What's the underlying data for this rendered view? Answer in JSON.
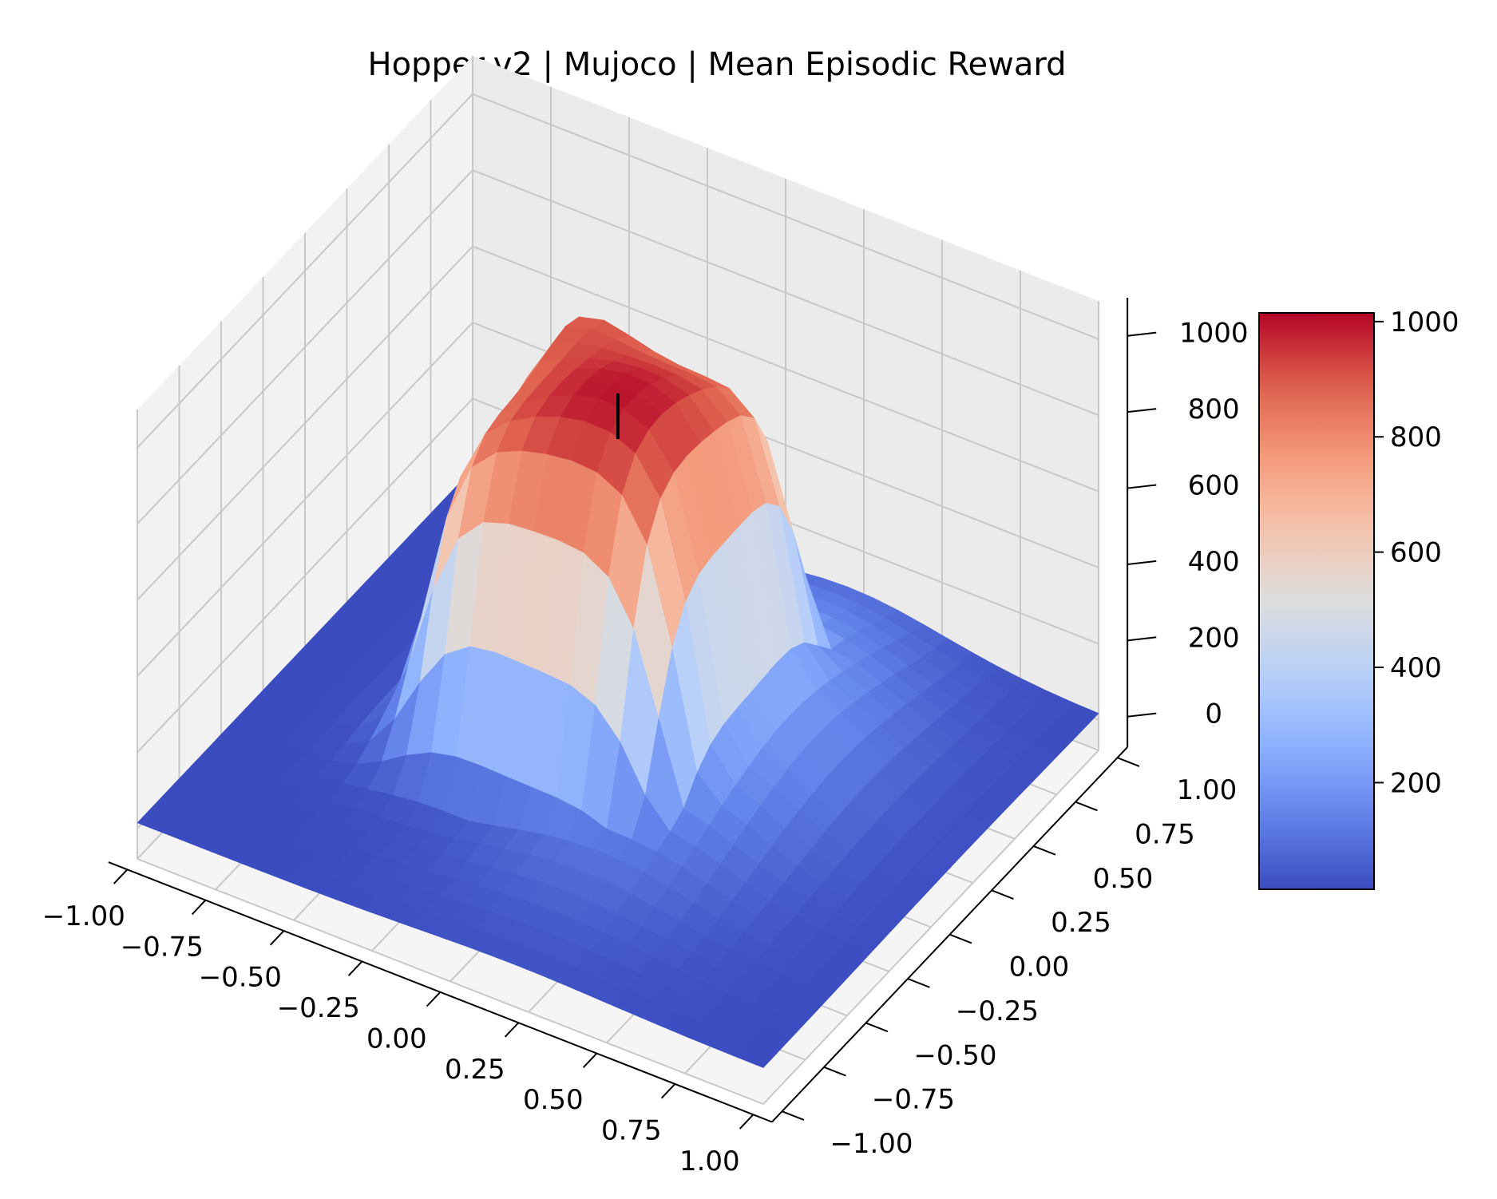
{
  "chart_data": {
    "type": "surface3d",
    "title": "Hopper-v2 | Mujoco | Mean Episodic Reward",
    "colormap": "coolwarm",
    "x_ticks": [
      "−1.00",
      "−0.75",
      "−0.50",
      "−0.25",
      "0.00",
      "0.25",
      "0.50",
      "0.75",
      "1.00"
    ],
    "x_tick_values": [
      -1.0,
      -0.75,
      -0.5,
      -0.25,
      0.0,
      0.25,
      0.5,
      0.75,
      1.0
    ],
    "y_ticks": [
      "−1.00",
      "−0.75",
      "−0.50",
      "−0.25",
      "0.00",
      "0.25",
      "0.50",
      "0.75",
      "1.00"
    ],
    "y_tick_values": [
      -1.0,
      -0.75,
      -0.5,
      -0.25,
      0.0,
      0.25,
      0.5,
      0.75,
      1.0
    ],
    "z_ticks": [
      "0",
      "200",
      "400",
      "600",
      "800",
      "1000"
    ],
    "z_tick_values": [
      0,
      200,
      400,
      600,
      800,
      1000
    ],
    "zlim": [
      -80,
      1100
    ],
    "colorbar": {
      "ticks": [
        "200",
        "400",
        "600",
        "800",
        "1000"
      ],
      "tick_values": [
        200,
        400,
        600,
        800,
        1000
      ],
      "range": [
        15,
        1015
      ]
    },
    "surface": {
      "x_range": [
        -1.0,
        1.0
      ],
      "y_range": [
        -1.0,
        1.0
      ],
      "grid_points": 26,
      "peak_value": 1000,
      "plateau_center": [
        -0.1,
        0.15
      ],
      "min_value": 15
    },
    "marker": {
      "x": 0.0,
      "y": 0.0,
      "z_from": 880,
      "z_to": 1000
    },
    "grid": true
  }
}
